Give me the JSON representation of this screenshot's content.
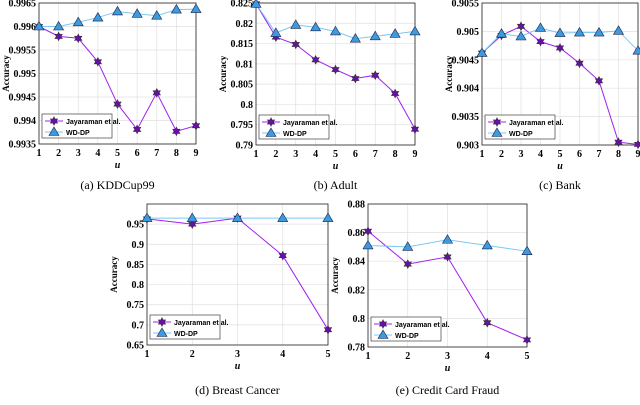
{
  "colors": {
    "baseline": "#a020f0",
    "baseline_marker": "#6a0dad",
    "ours": "#7ec8f0",
    "ours_marker": "#3a9be0",
    "grid": "#e0e0e0"
  },
  "chart_data": [
    {
      "type": "line",
      "caption": "(a)  KDDCup99",
      "xlabel": "u",
      "ylabel": "Accuracy",
      "x": [
        1,
        2,
        3,
        4,
        5,
        6,
        7,
        8,
        9
      ],
      "xlim": [
        1,
        9
      ],
      "ylim": [
        0.9935,
        0.9965
      ],
      "yticks": [
        "0.9935",
        "0.994",
        "0.9945",
        "0.995",
        "0.9955",
        "0.996",
        "0.9965"
      ],
      "grid": true,
      "legend": "bottom-left",
      "series": [
        {
          "name": "Jayaraman et al.",
          "values": [
            0.996,
            0.99579,
            0.99575,
            0.99525,
            0.99435,
            0.99381,
            0.99459,
            0.99377,
            0.99389
          ]
        },
        {
          "name": "WD-DP",
          "values": [
            0.996,
            0.996,
            0.99609,
            0.99619,
            0.99632,
            0.99627,
            0.99623,
            0.99636,
            0.99637
          ]
        }
      ]
    },
    {
      "type": "line",
      "caption": "(b)  Adult",
      "xlabel": "u",
      "ylabel": "Accuracy",
      "x": [
        1,
        2,
        3,
        4,
        5,
        6,
        7,
        8,
        9
      ],
      "xlim": [
        1,
        9
      ],
      "ylim": [
        0.79,
        0.825
      ],
      "yticks": [
        "0.79",
        "0.795",
        "0.8",
        "0.805",
        "0.81",
        "0.815",
        "0.82",
        "0.825"
      ],
      "grid": true,
      "legend": "bottom-left",
      "series": [
        {
          "name": "Jayaraman et al.",
          "values": [
            0.8248,
            0.8166,
            0.8148,
            0.811,
            0.8086,
            0.8064,
            0.8072,
            0.8027,
            0.7939
          ]
        },
        {
          "name": "WD-DP",
          "values": [
            0.8248,
            0.8176,
            0.8196,
            0.819,
            0.818,
            0.8162,
            0.8168,
            0.8174,
            0.818
          ]
        }
      ]
    },
    {
      "type": "line",
      "caption": "(c)  Bank",
      "xlabel": "u",
      "ylabel": "Accuracy",
      "x": [
        1,
        2,
        3,
        4,
        5,
        6,
        7,
        8,
        9
      ],
      "xlim": [
        1,
        9
      ],
      "ylim": [
        0.903,
        0.9055
      ],
      "yticks": [
        "0.903",
        "0.9035",
        "0.904",
        "0.9045",
        "0.905",
        "0.9055"
      ],
      "grid": true,
      "legend": "bottom-left",
      "series": [
        {
          "name": "Jayaraman et al.",
          "values": [
            0.90462,
            0.90493,
            0.90509,
            0.90482,
            0.90471,
            0.90444,
            0.90413,
            0.90305,
            0.90301
          ]
        },
        {
          "name": "WD-DP",
          "values": [
            0.90462,
            0.90496,
            0.90491,
            0.90506,
            0.90497,
            0.90498,
            0.90498,
            0.90501,
            0.90466
          ]
        }
      ]
    },
    {
      "type": "line",
      "caption": "(d)  Breast Cancer",
      "xlabel": "u",
      "ylabel": "Accuracy",
      "x": [
        1,
        2,
        3,
        4,
        5
      ],
      "xlim": [
        1,
        5
      ],
      "ylim": [
        0.65,
        1.0
      ],
      "yticks": [
        "0.65",
        "0.7",
        "0.75",
        "0.8",
        "0.85",
        "0.9",
        "0.95"
      ],
      "grid": true,
      "legend": "bottom-left",
      "series": [
        {
          "name": "Jayaraman et al.",
          "values": [
            0.963,
            0.95,
            0.965,
            0.872,
            0.688
          ]
        },
        {
          "name": "WD-DP",
          "values": [
            0.965,
            0.965,
            0.965,
            0.965,
            0.965
          ]
        }
      ]
    },
    {
      "type": "line",
      "caption": "(e)  Credit Card Fraud",
      "xlabel": "u",
      "ylabel": "Accuracy",
      "x": [
        1,
        2,
        3,
        4,
        5
      ],
      "xlim": [
        1,
        5
      ],
      "ylim": [
        0.78,
        0.88
      ],
      "yticks": [
        "0.78",
        "0.8",
        "0.82",
        "0.84",
        "0.86",
        "0.88"
      ],
      "grid": true,
      "legend": "bottom-left",
      "series": [
        {
          "name": "Jayaraman et al.",
          "values": [
            0.861,
            0.838,
            0.843,
            0.797,
            0.785
          ]
        },
        {
          "name": "WD-DP",
          "values": [
            0.851,
            0.85,
            0.855,
            0.851,
            0.847
          ]
        }
      ]
    }
  ]
}
